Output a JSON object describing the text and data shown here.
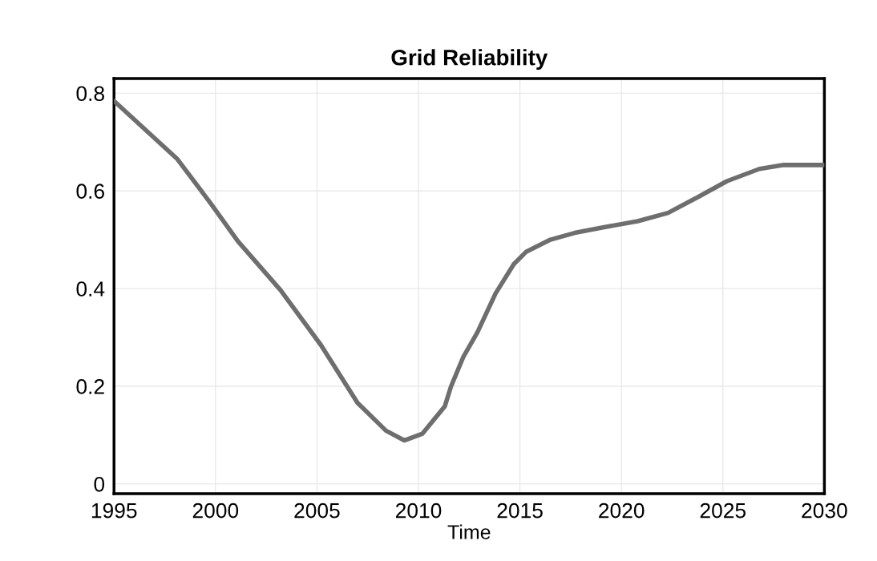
{
  "chart_data": {
    "type": "line",
    "title": "Grid Reliability",
    "xlabel": "Time",
    "x": [
      1995,
      1998.1,
      1999.7,
      2001.1,
      2003.2,
      2005.2,
      2007.0,
      2008.4,
      2009.3,
      2010.2,
      2011.3,
      2011.6,
      2012.2,
      2012.9,
      2013.8,
      2014.7,
      2015.3,
      2016.5,
      2017.7,
      2019.2,
      2020.8,
      2022.3,
      2023.8,
      2025.2,
      2026.8,
      2028.0,
      2030
    ],
    "series": [
      {
        "color": "#6e6e6e",
        "values": [
          0.784,
          0.666,
          0.578,
          0.497,
          0.397,
          0.284,
          0.166,
          0.109,
          0.089,
          0.103,
          0.159,
          0.199,
          0.259,
          0.31,
          0.39,
          0.45,
          0.475,
          0.5,
          0.514,
          0.526,
          0.538,
          0.555,
          0.588,
          0.62,
          0.645,
          0.653,
          0.653
        ]
      }
    ],
    "xlim": [
      1995,
      2030
    ],
    "xticks": [
      1995,
      2000,
      2005,
      2010,
      2015,
      2020,
      2025,
      2030
    ],
    "ylim": [
      -0.02,
      0.83
    ],
    "yticks": [
      0,
      0.2,
      0.4,
      0.6,
      0.8
    ],
    "grid": true,
    "marker": "none",
    "line_style": "solid"
  }
}
